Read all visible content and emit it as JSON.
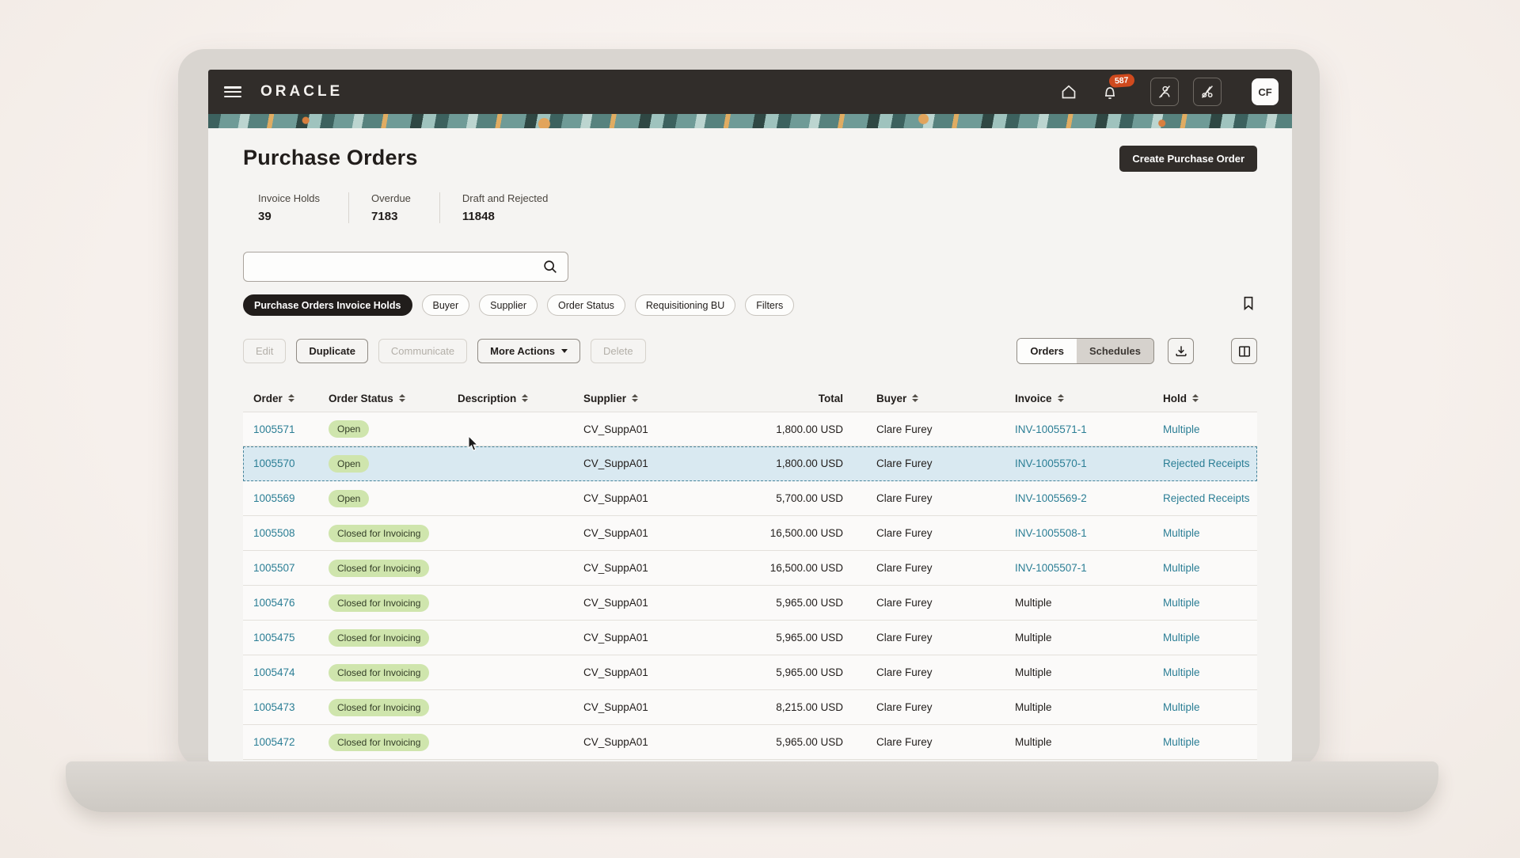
{
  "topbar": {
    "brand": "ORACLE",
    "notification_count": "587",
    "avatar_initials": "CF",
    "icons": [
      "menu-icon",
      "home-icon",
      "bell-icon",
      "person-disabled-icon",
      "tools-disabled-icon"
    ]
  },
  "page": {
    "title": "Purchase Orders",
    "create_button": "Create Purchase Order"
  },
  "stats": [
    {
      "label": "Invoice Holds",
      "value": "39"
    },
    {
      "label": "Overdue",
      "value": "7183"
    },
    {
      "label": "Draft and Rejected",
      "value": "11848"
    }
  ],
  "search": {
    "value": "",
    "placeholder": ""
  },
  "chips": [
    {
      "label": "Purchase Orders Invoice Holds",
      "active": true
    },
    {
      "label": "Buyer",
      "active": false
    },
    {
      "label": "Supplier",
      "active": false
    },
    {
      "label": "Order Status",
      "active": false
    },
    {
      "label": "Requisitioning BU",
      "active": false
    },
    {
      "label": "Filters",
      "active": false
    }
  ],
  "toolbar": {
    "buttons": [
      {
        "label": "Edit",
        "enabled": false
      },
      {
        "label": "Duplicate",
        "enabled": true
      },
      {
        "label": "Communicate",
        "enabled": false
      },
      {
        "label": "More Actions",
        "enabled": true,
        "dropdown": true
      },
      {
        "label": "Delete",
        "enabled": false
      }
    ],
    "view_toggle": [
      {
        "label": "Orders",
        "active": true
      },
      {
        "label": "Schedules",
        "active": false
      }
    ],
    "icon_buttons": [
      "download-icon",
      "columns-icon"
    ]
  },
  "table": {
    "columns": [
      {
        "label": "Order",
        "sortable": true,
        "key": "order"
      },
      {
        "label": "Order Status",
        "sortable": true,
        "key": "status"
      },
      {
        "label": "Description",
        "sortable": true,
        "key": "desc"
      },
      {
        "label": "Supplier",
        "sortable": true,
        "key": "supplier"
      },
      {
        "label": "Total",
        "sortable": false,
        "key": "total"
      },
      {
        "label": "Buyer",
        "sortable": true,
        "key": "buyer"
      },
      {
        "label": "Invoice",
        "sortable": true,
        "key": "invoice"
      },
      {
        "label": "Hold",
        "sortable": true,
        "key": "hold"
      }
    ],
    "rows": [
      {
        "order": "1005571",
        "status": "Open",
        "desc": "",
        "supplier": "CV_SuppA01",
        "total": "1,800.00 USD",
        "buyer": "Clare Furey",
        "invoice": "INV-1005571-1",
        "invoice_is_link": true,
        "hold": "Multiple",
        "selected": false
      },
      {
        "order": "1005570",
        "status": "Open",
        "desc": "",
        "supplier": "CV_SuppA01",
        "total": "1,800.00 USD",
        "buyer": "Clare Furey",
        "invoice": "INV-1005570-1",
        "invoice_is_link": true,
        "hold": "Rejected Receipts",
        "selected": true
      },
      {
        "order": "1005569",
        "status": "Open",
        "desc": "",
        "supplier": "CV_SuppA01",
        "total": "5,700.00 USD",
        "buyer": "Clare Furey",
        "invoice": "INV-1005569-2",
        "invoice_is_link": true,
        "hold": "Rejected Receipts",
        "selected": false
      },
      {
        "order": "1005508",
        "status": "Closed for Invoicing",
        "desc": "",
        "supplier": "CV_SuppA01",
        "total": "16,500.00 USD",
        "buyer": "Clare Furey",
        "invoice": "INV-1005508-1",
        "invoice_is_link": true,
        "hold": "Multiple",
        "selected": false
      },
      {
        "order": "1005507",
        "status": "Closed for Invoicing",
        "desc": "",
        "supplier": "CV_SuppA01",
        "total": "16,500.00 USD",
        "buyer": "Clare Furey",
        "invoice": "INV-1005507-1",
        "invoice_is_link": true,
        "hold": "Multiple",
        "selected": false
      },
      {
        "order": "1005476",
        "status": "Closed for Invoicing",
        "desc": "",
        "supplier": "CV_SuppA01",
        "total": "5,965.00 USD",
        "buyer": "Clare Furey",
        "invoice": "Multiple",
        "invoice_is_link": false,
        "hold": "Multiple",
        "selected": false
      },
      {
        "order": "1005475",
        "status": "Closed for Invoicing",
        "desc": "",
        "supplier": "CV_SuppA01",
        "total": "5,965.00 USD",
        "buyer": "Clare Furey",
        "invoice": "Multiple",
        "invoice_is_link": false,
        "hold": "Multiple",
        "selected": false
      },
      {
        "order": "1005474",
        "status": "Closed for Invoicing",
        "desc": "",
        "supplier": "CV_SuppA01",
        "total": "5,965.00 USD",
        "buyer": "Clare Furey",
        "invoice": "Multiple",
        "invoice_is_link": false,
        "hold": "Multiple",
        "selected": false
      },
      {
        "order": "1005473",
        "status": "Closed for Invoicing",
        "desc": "",
        "supplier": "CV_SuppA01",
        "total": "8,215.00 USD",
        "buyer": "Clare Furey",
        "invoice": "Multiple",
        "invoice_is_link": false,
        "hold": "Multiple",
        "selected": false
      },
      {
        "order": "1005472",
        "status": "Closed for Invoicing",
        "desc": "",
        "supplier": "CV_SuppA01",
        "total": "5,965.00 USD",
        "buyer": "Clare Furey",
        "invoice": "Multiple",
        "invoice_is_link": false,
        "hold": "Multiple",
        "selected": false
      }
    ]
  },
  "colors": {
    "topbar_bg": "#312d2a",
    "badge_bg": "#d04a1e",
    "link": "#2b7e95",
    "status_pill_bg": "#cfe5ad",
    "selected_row_bg": "#d9e9f1",
    "content_bg": "#f5f4f2",
    "primary_button_bg": "#312d2a"
  }
}
